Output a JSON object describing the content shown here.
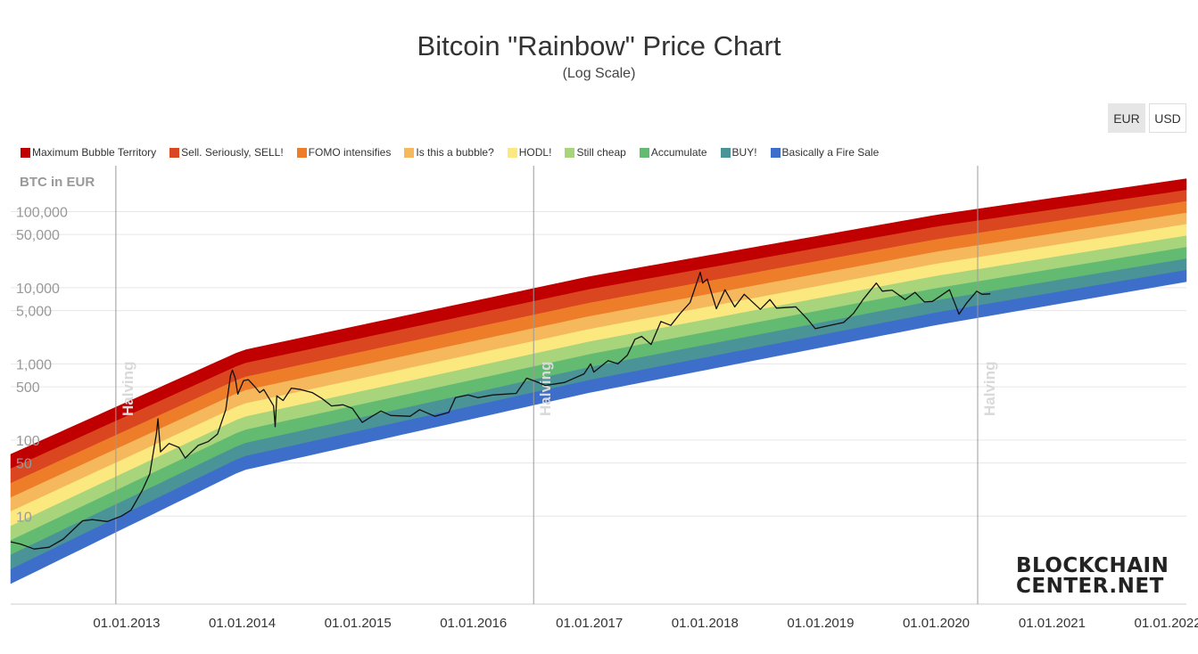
{
  "title": "Bitcoin \"Rainbow\" Price Chart",
  "subtitle": "(Log Scale)",
  "currency_toggle": [
    {
      "label": "EUR",
      "active": true
    },
    {
      "label": "USD",
      "active": false
    }
  ],
  "logo": {
    "line1": "BLOCKCHAIN",
    "line2": "CENTER.NET"
  },
  "chart_data": {
    "type": "area",
    "ylabel": "BTC in EUR",
    "y_scale": "log",
    "x_range": [
      "2012-01-01",
      "2022-03-01"
    ],
    "y_range": [
      0.7,
      400000
    ],
    "y_ticks": [
      {
        "value": 100000,
        "label": "100,000"
      },
      {
        "value": 50000,
        "label": "50,000"
      },
      {
        "value": 10000,
        "label": "10,000"
      },
      {
        "value": 5000,
        "label": "5,000"
      },
      {
        "value": 1000,
        "label": "1,000"
      },
      {
        "value": 500,
        "label": "500"
      },
      {
        "value": 100,
        "label": "100"
      },
      {
        "value": 50,
        "label": "50"
      },
      {
        "value": 10,
        "label": "10"
      }
    ],
    "x_ticks": [
      {
        "date": "2013-01-01",
        "label": "01.01.2013"
      },
      {
        "date": "2014-01-01",
        "label": "01.01.2014"
      },
      {
        "date": "2015-01-01",
        "label": "01.01.2015"
      },
      {
        "date": "2016-01-01",
        "label": "01.01.2016"
      },
      {
        "date": "2017-01-01",
        "label": "01.01.2017"
      },
      {
        "date": "2018-01-01",
        "label": "01.01.2018"
      },
      {
        "date": "2019-01-01",
        "label": "01.01.2019"
      },
      {
        "date": "2020-01-01",
        "label": "01.01.2020"
      },
      {
        "date": "2021-01-01",
        "label": "01.01.2021"
      },
      {
        "date": "2022-01-01",
        "label": "01.01.2022"
      }
    ],
    "halvings": [
      {
        "date": "2012-11-28",
        "label": "Halving"
      },
      {
        "date": "2016-07-09",
        "label": "Halving"
      },
      {
        "date": "2020-05-11",
        "label": "Halving"
      }
    ],
    "bands": [
      {
        "name": "Maximum Bubble Territory",
        "color": "#c00000",
        "lower": [
          42,
          1000,
          9500,
          63000,
          191000
        ],
        "upper": [
          65,
          1500,
          14000,
          90000,
          270000
        ]
      },
      {
        "name": "Sell. Seriously, SELL!",
        "color": "#d9461f",
        "lower": [
          27,
          660,
          6300,
          43000,
          136000
        ],
        "upper": [
          42,
          1000,
          9500,
          63000,
          191000
        ]
      },
      {
        "name": "FOMO intensifies",
        "color": "#ee7d2a",
        "lower": [
          17.5,
          440,
          4200,
          29500,
          96000
        ],
        "upper": [
          27,
          660,
          6300,
          43000,
          136000
        ]
      },
      {
        "name": "Is this a bubble?",
        "color": "#f6b85c",
        "lower": [
          11.5,
          295,
          2850,
          20500,
          68000
        ],
        "upper": [
          17.5,
          440,
          4200,
          29500,
          96000
        ]
      },
      {
        "name": "HODL!",
        "color": "#fbe87f",
        "lower": [
          7.4,
          198,
          1950,
          14200,
          48000
        ],
        "upper": [
          11.5,
          295,
          2850,
          20500,
          68000
        ]
      },
      {
        "name": "Still cheap",
        "color": "#a8d47c",
        "lower": [
          4.8,
          133,
          1330,
          9800,
          34000
        ],
        "upper": [
          7.4,
          198,
          1950,
          14200,
          48000
        ]
      },
      {
        "name": "Accumulate",
        "color": "#63bb72",
        "lower": [
          3.1,
          89,
          900,
          6800,
          24000
        ],
        "upper": [
          4.8,
          133,
          1330,
          9800,
          34000
        ]
      },
      {
        "name": "BUY!",
        "color": "#4a9498",
        "lower": [
          2.0,
          60,
          610,
          4700,
          17000
        ],
        "upper": [
          3.1,
          89,
          900,
          6800,
          24000
        ]
      },
      {
        "name": "Basically a Fire Sale",
        "color": "#3d6ec9",
        "lower": [
          1.3,
          40,
          420,
          3250,
          12000
        ],
        "upper": [
          2.0,
          60,
          610,
          4700,
          17000
        ]
      }
    ],
    "band_dates": [
      "2012-01-01",
      "2014-01-01",
      "2017-01-01",
      "2020-01-01",
      "2022-03-01"
    ],
    "price_series": {
      "color": "#111111",
      "points": [
        [
          "2012-01-01",
          4.6
        ],
        [
          "2012-02-01",
          4.3
        ],
        [
          "2012-03-15",
          3.7
        ],
        [
          "2012-05-01",
          3.9
        ],
        [
          "2012-06-15",
          5.0
        ],
        [
          "2012-08-15",
          8.7
        ],
        [
          "2012-09-15",
          9.0
        ],
        [
          "2012-11-01",
          8.5
        ],
        [
          "2012-12-15",
          10.0
        ],
        [
          "2013-01-15",
          12.0
        ],
        [
          "2013-02-20",
          22.0
        ],
        [
          "2013-03-15",
          36.0
        ],
        [
          "2013-04-05",
          120.0
        ],
        [
          "2013-04-10",
          190.0
        ],
        [
          "2013-04-18",
          70.0
        ],
        [
          "2013-05-15",
          90.0
        ],
        [
          "2013-06-15",
          80.0
        ],
        [
          "2013-07-05",
          58.0
        ],
        [
          "2013-08-15",
          85.0
        ],
        [
          "2013-09-15",
          95.0
        ],
        [
          "2013-10-15",
          120.0
        ],
        [
          "2013-11-10",
          250.0
        ],
        [
          "2013-11-25",
          700.0
        ],
        [
          "2013-12-01",
          830.0
        ],
        [
          "2013-12-10",
          650.0
        ],
        [
          "2013-12-18",
          400.0
        ],
        [
          "2014-01-05",
          600.0
        ],
        [
          "2014-01-20",
          620.0
        ],
        [
          "2014-02-10",
          500.0
        ],
        [
          "2014-02-25",
          420.0
        ],
        [
          "2014-03-10",
          460.0
        ],
        [
          "2014-04-10",
          280.0
        ],
        [
          "2014-04-15",
          150.0
        ],
        [
          "2014-04-20",
          380.0
        ],
        [
          "2014-05-10",
          330.0
        ],
        [
          "2014-06-05",
          480.0
        ],
        [
          "2014-07-05",
          460.0
        ],
        [
          "2014-08-10",
          420.0
        ],
        [
          "2014-09-10",
          350.0
        ],
        [
          "2014-10-10",
          280.0
        ],
        [
          "2014-11-15",
          290.0
        ],
        [
          "2014-12-15",
          260.0
        ],
        [
          "2015-01-15",
          170.0
        ],
        [
          "2015-02-15",
          205.0
        ],
        [
          "2015-03-15",
          240.0
        ],
        [
          "2015-04-15",
          210.0
        ],
        [
          "2015-06-15",
          205.0
        ],
        [
          "2015-07-15",
          250.0
        ],
        [
          "2015-09-01",
          205.0
        ],
        [
          "2015-10-15",
          230.0
        ],
        [
          "2015-11-05",
          360.0
        ],
        [
          "2015-12-15",
          390.0
        ],
        [
          "2016-01-15",
          360.0
        ],
        [
          "2016-03-01",
          390.0
        ],
        [
          "2016-05-15",
          410.0
        ],
        [
          "2016-06-17",
          650.0
        ],
        [
          "2016-07-15",
          590.0
        ],
        [
          "2016-08-15",
          520.0
        ],
        [
          "2016-10-15",
          570.0
        ],
        [
          "2016-12-15",
          740.0
        ],
        [
          "2017-01-05",
          1000.0
        ],
        [
          "2017-01-15",
          780.0
        ],
        [
          "2017-03-01",
          1100.0
        ],
        [
          "2017-04-01",
          1000.0
        ],
        [
          "2017-05-01",
          1300.0
        ],
        [
          "2017-05-25",
          2100.0
        ],
        [
          "2017-06-15",
          2300.0
        ],
        [
          "2017-07-15",
          1800.0
        ],
        [
          "2017-08-15",
          3600.0
        ],
        [
          "2017-09-15",
          3200.0
        ],
        [
          "2017-10-15",
          4600.0
        ],
        [
          "2017-11-15",
          6400.0
        ],
        [
          "2017-12-10",
          13000.0
        ],
        [
          "2017-12-17",
          16000.0
        ],
        [
          "2017-12-25",
          11500.0
        ],
        [
          "2018-01-08",
          13000.0
        ],
        [
          "2018-02-06",
          5300.0
        ],
        [
          "2018-03-05",
          9400.0
        ],
        [
          "2018-04-05",
          5600.0
        ],
        [
          "2018-05-05",
          8200.0
        ],
        [
          "2018-06-25",
          5200.0
        ],
        [
          "2018-07-25",
          7000.0
        ],
        [
          "2018-08-15",
          5400.0
        ],
        [
          "2018-10-15",
          5600.0
        ],
        [
          "2018-11-20",
          3900.0
        ],
        [
          "2018-12-15",
          2900.0
        ],
        [
          "2019-01-15",
          3100.0
        ],
        [
          "2019-03-15",
          3500.0
        ],
        [
          "2019-04-15",
          4600.0
        ],
        [
          "2019-05-15",
          7000.0
        ],
        [
          "2019-06-26",
          11500.0
        ],
        [
          "2019-07-15",
          9000.0
        ],
        [
          "2019-08-15",
          9300.0
        ],
        [
          "2019-09-25",
          7000.0
        ],
        [
          "2019-10-26",
          8700.0
        ],
        [
          "2019-11-25",
          6500.0
        ],
        [
          "2019-12-20",
          6600.0
        ],
        [
          "2020-01-15",
          7800.0
        ],
        [
          "2020-02-12",
          9400.0
        ],
        [
          "2020-03-13",
          4500.0
        ],
        [
          "2020-04-05",
          6200.0
        ],
        [
          "2020-05-08",
          9000.0
        ],
        [
          "2020-05-25",
          8200.0
        ],
        [
          "2020-06-20",
          8300.0
        ]
      ]
    }
  }
}
